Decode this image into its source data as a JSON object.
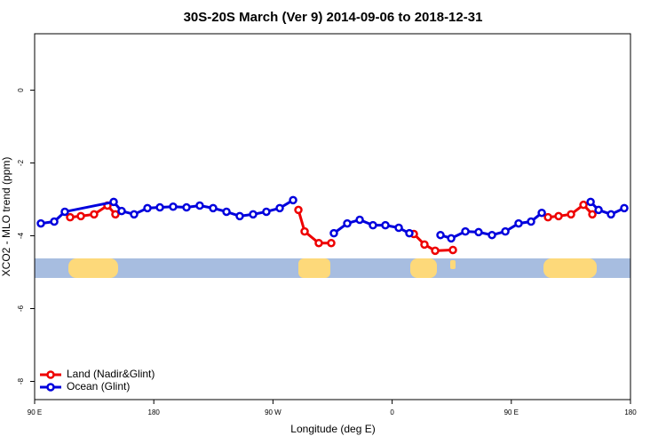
{
  "chart_data": {
    "type": "line",
    "title": "30S-20S March (Ver 9)   2014-09-06 to 2018-12-31",
    "x_label": "Longitude (deg E)",
    "y_label": "XCO2 - MLO trend (ppm)",
    "xlim": [
      90,
      540
    ],
    "ylim": [
      -8.5,
      1.55
    ],
    "xticks": [
      {
        "value": 90,
        "label": "90 E"
      },
      180,
      {
        "value": 270,
        "label": "90 W"
      },
      {
        "value": 360,
        "label": "0"
      },
      {
        "value": 450,
        "label": "90 E"
      },
      {
        "value": 540,
        "label": "180"
      }
    ],
    "yticks": [
      0,
      -2,
      -4,
      -6,
      -8
    ],
    "legend": "bottom-left",
    "series": [
      {
        "name": "Land (Nadir&Glint)",
        "color": "#ee0000",
        "x": [
          116.8,
          124.9,
          134.9,
          145.0,
          151.0,
          null,
          289.2,
          293.9,
          304.6,
          314.0,
          null,
          376.4,
          384.4,
          392.5,
          405.9,
          null,
          477.7,
          485.7,
          495.1,
          504.5,
          511.2
        ],
        "values": [
          -3.49,
          -3.46,
          -3.41,
          -3.17,
          -3.41,
          null,
          -3.29,
          -3.88,
          -4.2,
          -4.2,
          null,
          -3.95,
          -4.24,
          -4.41,
          -4.39,
          null,
          -3.49,
          -3.46,
          -3.41,
          -3.15,
          -3.41
        ]
      },
      {
        "name": "Ocean (Glint)",
        "color": "#0000dd",
        "x": [
          94.7,
          104.8,
          112.8,
          149.7,
          155.7,
          165.1,
          175.2,
          184.6,
          194.6,
          204.7,
          214.7,
          224.8,
          234.9,
          244.9,
          255.0,
          265.0,
          275.1,
          285.2,
          null,
          316.0,
          326.1,
          335.5,
          345.5,
          354.9,
          365.0,
          373.0,
          null,
          396.5,
          404.6,
          415.3,
          425.3,
          435.4,
          445.5,
          455.5,
          464.9,
          473.0,
          null,
          509.9,
          515.9,
          525.3,
          535.3
        ],
        "values": [
          -3.66,
          -3.61,
          -3.34,
          -3.07,
          -3.32,
          -3.41,
          -3.24,
          -3.22,
          -3.2,
          -3.22,
          -3.17,
          -3.24,
          -3.34,
          -3.46,
          -3.41,
          -3.34,
          -3.24,
          -3.02,
          null,
          -3.93,
          -3.66,
          -3.56,
          -3.71,
          -3.71,
          -3.78,
          -3.93,
          null,
          -3.98,
          -4.07,
          -3.88,
          -3.9,
          -3.98,
          -3.88,
          -3.66,
          -3.61,
          -3.37,
          null,
          -3.07,
          -3.29,
          -3.41,
          -3.24
        ]
      }
    ]
  }
}
